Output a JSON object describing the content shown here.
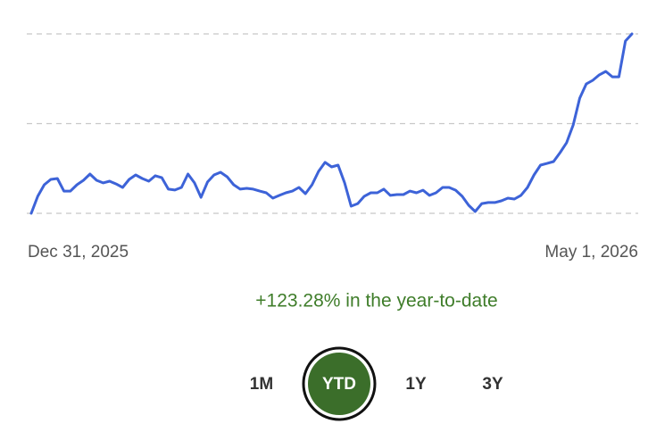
{
  "chart_data": {
    "type": "line",
    "color": "#3d63d8",
    "ylim": [
      100,
      223.28
    ],
    "yticks": [
      100,
      161.64,
      223.28
    ],
    "grid": true,
    "xticks": [
      {
        "value": 0,
        "label": "Dec 31, 2025"
      },
      {
        "value": 92,
        "label": "May 1, 2026"
      }
    ],
    "values": [
      100,
      111.7,
      119.6,
      123.3,
      123.9,
      115.3,
      115.3,
      119.6,
      122.7,
      127.0,
      122.7,
      120.9,
      122.1,
      120.2,
      117.8,
      123.3,
      126.4,
      123.9,
      122.1,
      125.8,
      124.5,
      116.6,
      116.0,
      117.8,
      127.0,
      120.9,
      111.0,
      121.5,
      126.4,
      128.2,
      125.1,
      119.6,
      116.6,
      117.2,
      116.6,
      115.3,
      114.1,
      110.4,
      112.3,
      114.1,
      115.3,
      117.8,
      113.5,
      119.6,
      128.8,
      135.0,
      131.9,
      133.1,
      120.9,
      104.9,
      106.7,
      111.7,
      114.1,
      114.1,
      116.6,
      112.3,
      112.9,
      112.9,
      115.3,
      114.1,
      115.9,
      112.3,
      114.1,
      117.8,
      117.8,
      115.9,
      111.7,
      105.5,
      101.2,
      106.7,
      107.4,
      107.4,
      108.6,
      110.4,
      109.8,
      112.3,
      117.8,
      126.4,
      133.1,
      134.3,
      135.6,
      141.7,
      148.5,
      160.7,
      179.1,
      188.9,
      191.4,
      195.1,
      197.5,
      193.8,
      193.8,
      218.4,
      223.3
    ],
    "summary": "+123.28% in the year-to-date",
    "summary_color": "#3f7d2a",
    "ranges": [
      "1M",
      "YTD",
      "1Y",
      "3Y"
    ],
    "selected": "YTD",
    "selected_color": "#3b6e2a"
  }
}
